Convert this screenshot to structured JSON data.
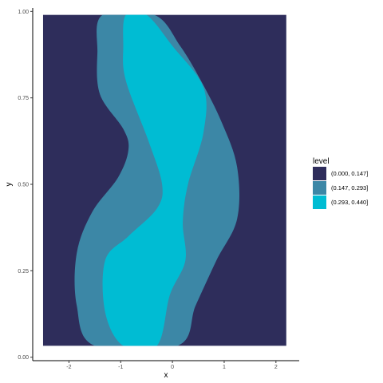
{
  "chart_data": {
    "type": "filled-contour",
    "xlabel": "x",
    "ylabel": "y",
    "xlim": [
      -2.7,
      2.45
    ],
    "ylim": [
      -0.01,
      1.01
    ],
    "x_range": [
      -2.5,
      2.2
    ],
    "y_range": [
      0.033,
      0.99
    ],
    "x_ticks": [
      -2,
      -1,
      0,
      1,
      2
    ],
    "x_tick_labels": [
      "-2",
      "-1",
      "0",
      "1",
      "2"
    ],
    "y_ticks": [
      0.0,
      0.25,
      0.5,
      0.75,
      1.0
    ],
    "y_tick_labels": [
      "0.00",
      "0.25",
      "0.50",
      "0.75",
      "1.00"
    ],
    "grid": false,
    "legend": {
      "title": "level",
      "position": "right",
      "entries": [
        {
          "label": "(0.000, 0.147]",
          "color": "#2e2d5b"
        },
        {
          "label": "(0.147, 0.293]",
          "color": "#3c87a6"
        },
        {
          "label": "(0.293, 0.440]",
          "color": "#00bcd3"
        }
      ]
    },
    "levels": [
      {
        "label": "(0.147, 0.293]",
        "color": "#3c87a6",
        "boundary": [
          [
            -1.35,
            0.99
          ],
          [
            -0.35,
            0.99
          ],
          [
            0.15,
            0.9
          ],
          [
            0.55,
            0.8
          ],
          [
            0.95,
            0.68
          ],
          [
            1.25,
            0.55
          ],
          [
            1.25,
            0.4
          ],
          [
            0.85,
            0.28
          ],
          [
            0.45,
            0.15
          ],
          [
            0.1,
            0.033
          ],
          [
            -1.5,
            0.033
          ],
          [
            -1.85,
            0.15
          ],
          [
            -1.85,
            0.3
          ],
          [
            -1.55,
            0.42
          ],
          [
            -1.05,
            0.52
          ],
          [
            -0.85,
            0.6
          ],
          [
            -0.95,
            0.66
          ],
          [
            -1.4,
            0.76
          ],
          [
            -1.45,
            0.88
          ]
        ]
      },
      {
        "label": "(0.293, 0.440]",
        "color": "#00bcd3",
        "boundary": [
          [
            -0.9,
            0.99
          ],
          [
            -0.5,
            0.99
          ],
          [
            0.0,
            0.9
          ],
          [
            0.6,
            0.78
          ],
          [
            0.6,
            0.65
          ],
          [
            0.3,
            0.5
          ],
          [
            0.2,
            0.39
          ],
          [
            0.25,
            0.28
          ],
          [
            -0.05,
            0.18
          ],
          [
            -0.3,
            0.033
          ],
          [
            -0.95,
            0.033
          ],
          [
            -1.3,
            0.13
          ],
          [
            -1.3,
            0.28
          ],
          [
            -0.85,
            0.35
          ],
          [
            -0.3,
            0.43
          ],
          [
            -0.2,
            0.5
          ],
          [
            -0.45,
            0.62
          ],
          [
            -0.9,
            0.8
          ],
          [
            -0.95,
            0.9
          ]
        ]
      }
    ]
  }
}
